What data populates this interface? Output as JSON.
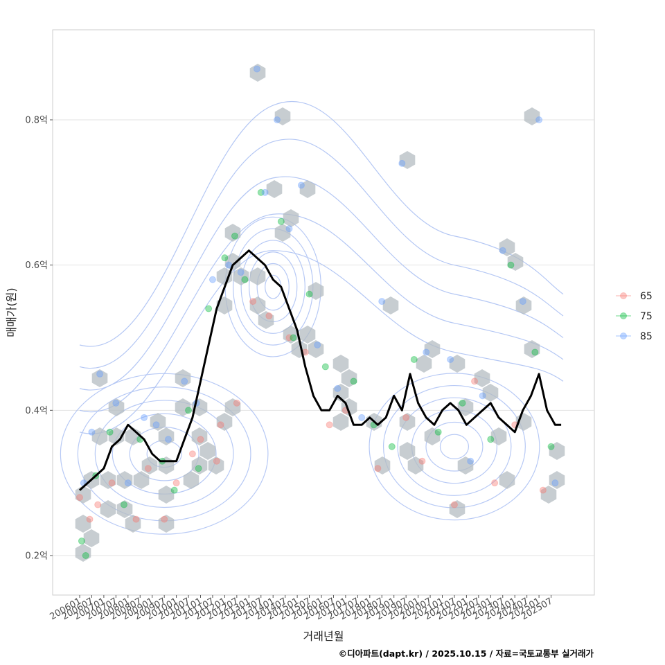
{
  "chart_data": {
    "type": "scatter",
    "title": "",
    "xlabel": "거래년월",
    "ylabel": "매매가(원)",
    "ylim": [
      0.15,
      0.93
    ],
    "xlim": [
      0,
      243
    ],
    "y_ticks": [
      {
        "value": 0.2,
        "label": "0.2억"
      },
      {
        "value": 0.4,
        "label": "0.4억"
      },
      {
        "value": 0.6,
        "label": "0.6억"
      },
      {
        "value": 0.8,
        "label": "0.8억"
      }
    ],
    "x_ticks": [
      "200601",
      "200607",
      "200701",
      "200707",
      "200801",
      "200807",
      "200901",
      "200907",
      "201001",
      "201007",
      "201101",
      "201107",
      "201201",
      "201207",
      "201301",
      "201307",
      "201401",
      "201407",
      "201501",
      "201507",
      "201601",
      "201607",
      "201701",
      "201707",
      "201801",
      "201807",
      "201901",
      "201907",
      "202001",
      "202007",
      "202101",
      "202107",
      "202201",
      "202207",
      "202301",
      "202307",
      "202401",
      "202407",
      "202501",
      "202507"
    ],
    "legend": {
      "position": "right",
      "entries": [
        {
          "name": "65",
          "color": "#F8766D"
        },
        {
          "name": "75",
          "color": "#00BA38"
        },
        {
          "name": "85",
          "color": "#619CFF"
        }
      ]
    },
    "moving_average": {
      "name": "trend",
      "color": "#000000",
      "x": [
        0,
        4,
        8,
        12,
        16,
        20,
        24,
        28,
        32,
        36,
        40,
        44,
        48,
        52,
        56,
        60,
        64,
        68,
        72,
        76,
        80,
        84,
        88,
        92,
        96,
        100,
        104,
        108,
        112,
        116,
        120,
        124,
        128,
        132,
        136,
        140,
        144,
        148,
        152,
        156,
        160,
        164,
        168,
        172,
        176,
        180,
        184,
        188,
        192,
        196,
        200,
        204,
        208,
        212,
        216,
        220,
        224,
        228,
        232,
        236,
        239
      ],
      "y": [
        0.29,
        0.3,
        0.31,
        0.32,
        0.35,
        0.36,
        0.38,
        0.37,
        0.36,
        0.34,
        0.33,
        0.33,
        0.33,
        0.36,
        0.39,
        0.44,
        0.49,
        0.54,
        0.57,
        0.6,
        0.61,
        0.62,
        0.61,
        0.6,
        0.58,
        0.57,
        0.54,
        0.51,
        0.46,
        0.42,
        0.4,
        0.4,
        0.42,
        0.41,
        0.38,
        0.38,
        0.39,
        0.38,
        0.39,
        0.42,
        0.4,
        0.45,
        0.41,
        0.39,
        0.38,
        0.4,
        0.41,
        0.4,
        0.38,
        0.39,
        0.4,
        0.41,
        0.39,
        0.38,
        0.37,
        0.4,
        0.42,
        0.45,
        0.4,
        0.38,
        0.38
      ]
    },
    "series": [
      {
        "name": "65",
        "x": [
          0,
          5,
          9,
          16,
          28,
          34,
          42,
          48,
          56,
          60,
          68,
          70,
          78,
          86,
          94,
          104,
          112,
          124,
          132,
          148,
          162,
          170,
          186,
          196,
          206,
          216,
          230
        ],
        "y": [
          0.28,
          0.25,
          0.27,
          0.3,
          0.25,
          0.32,
          0.25,
          0.3,
          0.34,
          0.36,
          0.33,
          0.38,
          0.41,
          0.55,
          0.53,
          0.5,
          0.48,
          0.38,
          0.4,
          0.32,
          0.39,
          0.33,
          0.27,
          0.44,
          0.3,
          0.38,
          0.29
        ]
      },
      {
        "name": "75",
        "x": [
          1,
          3,
          8,
          15,
          22,
          30,
          41,
          47,
          54,
          59,
          64,
          72,
          77,
          82,
          90,
          100,
          106,
          114,
          122,
          136,
          146,
          155,
          166,
          178,
          190,
          204,
          214,
          226,
          234
        ],
        "y": [
          0.22,
          0.2,
          0.31,
          0.37,
          0.27,
          0.36,
          0.33,
          0.29,
          0.4,
          0.32,
          0.54,
          0.61,
          0.64,
          0.58,
          0.7,
          0.66,
          0.5,
          0.56,
          0.46,
          0.44,
          0.38,
          0.35,
          0.47,
          0.37,
          0.41,
          0.36,
          0.6,
          0.48,
          0.35
        ]
      },
      {
        "name": "85",
        "x": [
          2,
          6,
          10,
          18,
          24,
          32,
          38,
          44,
          52,
          58,
          66,
          74,
          80,
          88,
          92,
          98,
          104,
          110,
          118,
          128,
          140,
          150,
          160,
          172,
          184,
          194,
          200,
          210,
          220,
          228,
          236
        ],
        "y": [
          0.3,
          0.37,
          0.45,
          0.41,
          0.3,
          0.39,
          0.38,
          0.36,
          0.44,
          0.41,
          0.58,
          0.6,
          0.59,
          0.87,
          0.7,
          0.8,
          0.65,
          0.71,
          0.49,
          0.43,
          0.39,
          0.55,
          0.74,
          0.48,
          0.47,
          0.33,
          0.42,
          0.62,
          0.55,
          0.8,
          0.3
        ]
      }
    ]
  },
  "caption": "©디아파트(dapt.kr) / 2025.10.15 / 자료=국토교통부 실거래가"
}
